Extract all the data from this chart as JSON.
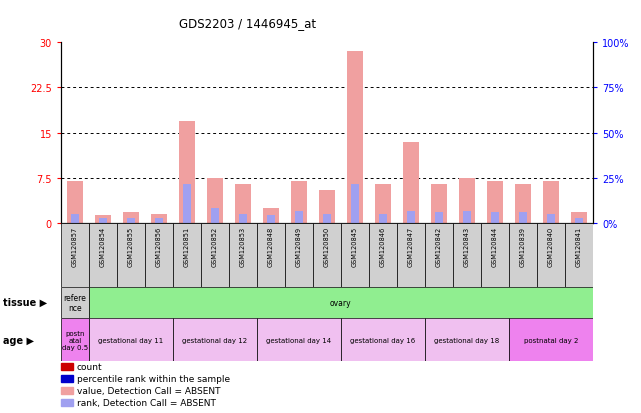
{
  "title": "GDS2203 / 1446945_at",
  "samples": [
    "GSM120857",
    "GSM120854",
    "GSM120855",
    "GSM120856",
    "GSM120851",
    "GSM120852",
    "GSM120853",
    "GSM120848",
    "GSM120849",
    "GSM120850",
    "GSM120845",
    "GSM120846",
    "GSM120847",
    "GSM120842",
    "GSM120843",
    "GSM120844",
    "GSM120839",
    "GSM120840",
    "GSM120841"
  ],
  "count_values": [
    7.0,
    1.2,
    1.8,
    1.5,
    17.0,
    7.5,
    6.5,
    2.5,
    7.0,
    5.5,
    28.5,
    6.5,
    13.5,
    6.5,
    7.5,
    7.0,
    6.5,
    7.0,
    1.8
  ],
  "rank_values": [
    1.5,
    0.8,
    0.8,
    0.8,
    6.5,
    2.5,
    1.5,
    1.2,
    2.0,
    1.5,
    6.5,
    1.5,
    2.0,
    1.8,
    2.0,
    1.8,
    1.8,
    1.5,
    0.8
  ],
  "bar_color_count": "#f0a0a0",
  "bar_color_rank": "#a0a0f0",
  "ylim_left": [
    0,
    30
  ],
  "ylim_right": [
    0,
    100
  ],
  "yticks_left": [
    0,
    7.5,
    15,
    22.5,
    30
  ],
  "yticks_right": [
    0,
    25,
    50,
    75,
    100
  ],
  "ytick_labels_left": [
    "0",
    "7.5",
    "15",
    "22.5",
    "30"
  ],
  "ytick_labels_right": [
    "0%",
    "25%",
    "50%",
    "75%",
    "100%"
  ],
  "plot_bg": "#ffffff",
  "sample_box_bg": "#d0d0d0",
  "tissue_label": "tissue",
  "age_label": "age",
  "tissue_groups": [
    {
      "label": "refere\nnce",
      "color": "#d0d0d0",
      "start": 0,
      "end": 1
    },
    {
      "label": "ovary",
      "color": "#90ee90",
      "start": 1,
      "end": 19
    }
  ],
  "age_groups": [
    {
      "label": "postn\natal\nday 0.5",
      "color": "#ee82ee",
      "start": 0,
      "end": 1
    },
    {
      "label": "gestational day 11",
      "color": "#f0c0f0",
      "start": 1,
      "end": 4
    },
    {
      "label": "gestational day 12",
      "color": "#f0c0f0",
      "start": 4,
      "end": 7
    },
    {
      "label": "gestational day 14",
      "color": "#f0c0f0",
      "start": 7,
      "end": 10
    },
    {
      "label": "gestational day 16",
      "color": "#f0c0f0",
      "start": 10,
      "end": 13
    },
    {
      "label": "gestational day 18",
      "color": "#f0c0f0",
      "start": 13,
      "end": 16
    },
    {
      "label": "postnatal day 2",
      "color": "#ee82ee",
      "start": 16,
      "end": 19
    }
  ],
  "legend_items": [
    {
      "label": "count",
      "color": "#cc0000"
    },
    {
      "label": "percentile rank within the sample",
      "color": "#0000cc"
    },
    {
      "label": "value, Detection Call = ABSENT",
      "color": "#f0a0a0"
    },
    {
      "label": "rank, Detection Call = ABSENT",
      "color": "#a0a0f0"
    }
  ]
}
